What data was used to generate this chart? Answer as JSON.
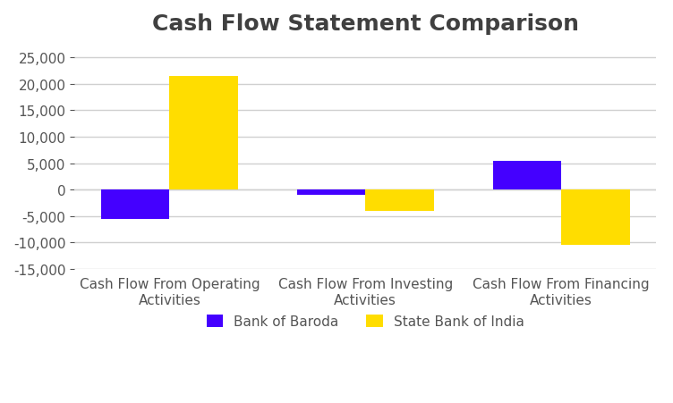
{
  "title": "Cash Flow Statement Comparison",
  "categories": [
    "Cash Flow From Operating\nActivities",
    "Cash Flow From Investing\nActivities",
    "Cash Flow From Financing\nActivities"
  ],
  "bob_values": [
    -5500,
    -1000,
    5500
  ],
  "sbi_values": [
    21500,
    -4000,
    -10500
  ],
  "bob_color": "#4400ff",
  "sbi_color": "#ffdd00",
  "bob_label": "Bank of Baroda",
  "sbi_label": "State Bank of India",
  "ylim": [
    -15000,
    27500
  ],
  "yticks": [
    -15000,
    -10000,
    -5000,
    0,
    5000,
    10000,
    15000,
    20000,
    25000
  ],
  "figure_bg": "#ffffff",
  "plot_bg": "#ffffff",
  "grid_color": "#d0d0d0",
  "bar_width": 0.35,
  "title_fontsize": 18,
  "title_color": "#404040",
  "tick_fontsize": 11,
  "tick_color": "#555555",
  "legend_fontsize": 11,
  "legend_color": "#555555"
}
